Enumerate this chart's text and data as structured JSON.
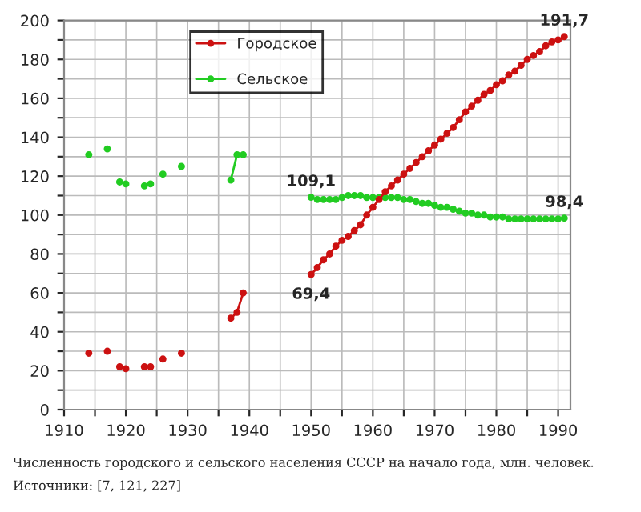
{
  "chart_data": {
    "type": "line",
    "x": [
      1914,
      1915,
      1917,
      1918,
      1919,
      1919.5,
      1920,
      1921,
      1923,
      1923.5,
      1924,
      1925,
      1926,
      1927,
      1929,
      1930,
      1937,
      1938,
      1939,
      1940,
      1950,
      1951,
      1952,
      1953,
      1954,
      1955,
      1956,
      1957,
      1958,
      1959,
      1960,
      1961,
      1962,
      1963,
      1964,
      1965,
      1966,
      1967,
      1968,
      1969,
      1970,
      1971,
      1972,
      1973,
      1974,
      1975,
      1976,
      1977,
      1978,
      1979,
      1980,
      1981,
      1982,
      1983,
      1984,
      1985,
      1986,
      1987,
      1988,
      1989,
      1990,
      1991
    ],
    "series": [
      {
        "name": "Городское",
        "color": "#cc1111",
        "values": [
          29,
          null,
          30,
          null,
          22,
          null,
          21,
          null,
          22,
          null,
          22,
          null,
          26,
          null,
          29,
          null,
          47,
          50,
          60,
          null,
          69.4,
          73,
          77,
          80,
          84,
          87,
          89,
          92,
          95,
          100,
          104,
          108,
          112,
          115,
          118,
          121,
          124,
          127,
          130,
          133,
          136,
          139,
          142,
          145,
          149,
          153,
          156,
          159,
          162,
          164,
          167,
          169,
          172,
          174,
          177,
          180,
          182,
          184,
          187,
          189,
          190,
          191.7
        ],
        "value_labels": [
          null,
          null,
          null,
          null,
          null,
          null,
          null,
          null,
          null,
          null,
          null,
          null,
          null,
          null,
          null,
          null,
          null,
          null,
          null,
          null,
          "69,4",
          null,
          null,
          null,
          null,
          null,
          null,
          null,
          null,
          null,
          null,
          null,
          null,
          null,
          null,
          null,
          null,
          null,
          null,
          null,
          null,
          null,
          null,
          null,
          null,
          null,
          null,
          null,
          null,
          null,
          null,
          null,
          null,
          null,
          null,
          null,
          null,
          null,
          null,
          null,
          null,
          "191,7"
        ]
      },
      {
        "name": "Сельское",
        "color": "#22cc22",
        "values": [
          131,
          null,
          134,
          null,
          117,
          null,
          116,
          null,
          115,
          null,
          116,
          null,
          121,
          null,
          125,
          null,
          118,
          131,
          131,
          null,
          109.1,
          108,
          108,
          108,
          108,
          109,
          110,
          110,
          110,
          109,
          109,
          109,
          109,
          109,
          109,
          108,
          108,
          107,
          106,
          106,
          105,
          104,
          104,
          103,
          102,
          101,
          101,
          100,
          100,
          99,
          99,
          99,
          98,
          98,
          98,
          98,
          98,
          98,
          98,
          98,
          98,
          98.4
        ],
        "value_labels": [
          null,
          null,
          null,
          null,
          null,
          null,
          null,
          null,
          null,
          null,
          null,
          null,
          null,
          null,
          null,
          null,
          null,
          null,
          null,
          null,
          "109,1",
          null,
          null,
          null,
          null,
          null,
          null,
          null,
          null,
          null,
          null,
          null,
          null,
          null,
          null,
          null,
          null,
          null,
          null,
          null,
          null,
          null,
          null,
          null,
          null,
          null,
          null,
          null,
          null,
          null,
          null,
          null,
          null,
          null,
          null,
          null,
          null,
          null,
          null,
          null,
          null,
          "98,4"
        ]
      }
    ],
    "xlim": [
      1910,
      1992
    ],
    "xticks": [
      1910,
      {
        "value": 1915,
        "label": null
      },
      1920,
      {
        "value": 1925,
        "label": null
      },
      1930,
      {
        "value": 1935,
        "label": null
      },
      1940,
      {
        "value": 1945,
        "label": null
      },
      1950,
      {
        "value": 1955,
        "label": null
      },
      1960,
      {
        "value": 1965,
        "label": null
      },
      1970,
      {
        "value": 1975,
        "label": null
      },
      1980,
      {
        "value": 1985,
        "label": null
      },
      1990
    ],
    "ylim": [
      0,
      200
    ],
    "yticks": [
      0,
      {
        "value": 10,
        "label": null
      },
      20,
      {
        "value": 30,
        "label": null
      },
      40,
      {
        "value": 50,
        "label": null
      },
      60,
      {
        "value": 70,
        "label": null
      },
      80,
      {
        "value": 90,
        "label": null
      },
      100,
      {
        "value": 110,
        "label": null
      },
      120,
      {
        "value": 130,
        "label": null
      },
      140,
      {
        "value": 150,
        "label": null
      },
      160,
      {
        "value": 170,
        "label": null
      },
      180,
      {
        "value": 190,
        "label": null
      },
      200
    ],
    "grid": true,
    "legend": "top",
    "marker": "circle",
    "line_style": "solid",
    "annotations": [
      "Численность городского и сельского населения СССР на начало года, млн. человек.",
      "Источники: [7, 121, 227]"
    ]
  }
}
